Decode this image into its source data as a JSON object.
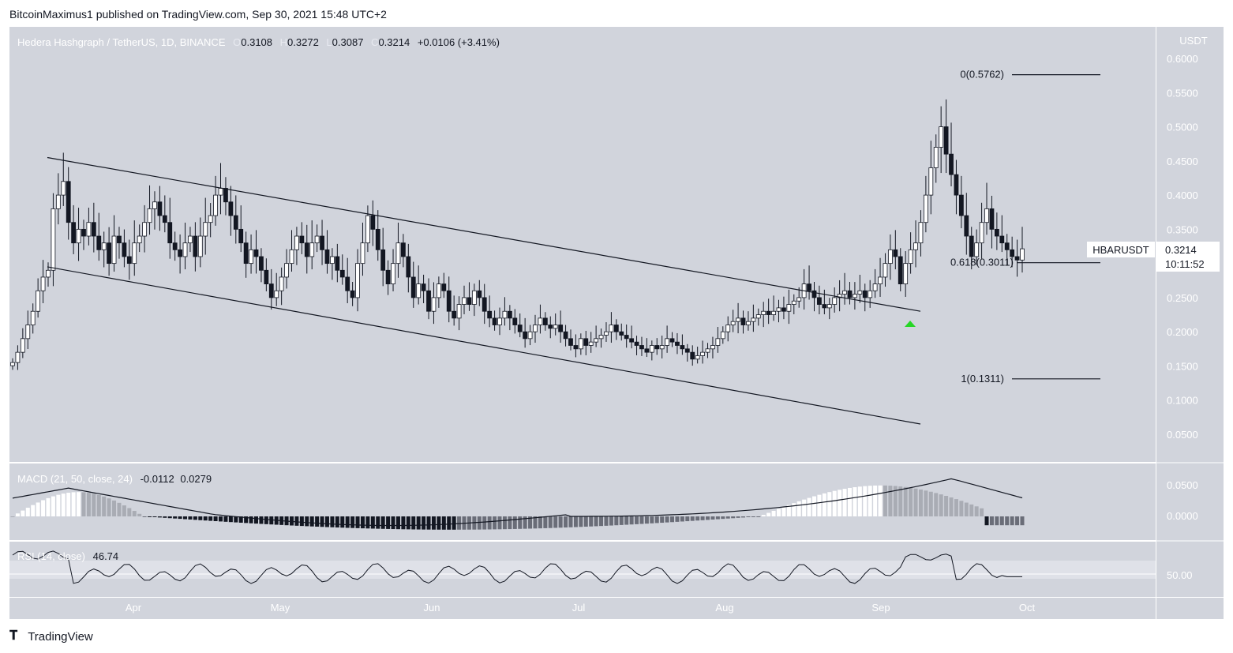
{
  "caption": "BitcoinMaximus1 published on TradingView.com, Sep 30, 2021 15:48 UTC+2",
  "header": {
    "symbol": "Hedera Hashgraph / TetherUS, 1D, BINANCE",
    "o_label": "O",
    "o": "0.3108",
    "h_label": "H",
    "h": "0.3272",
    "l_label": "L",
    "l": "0.3087",
    "c_label": "C",
    "c": "0.3214",
    "change": "+0.0106 (+3.41%)"
  },
  "price_axis": {
    "currency": "USDT",
    "ticks": [
      "0.6000",
      "0.5500",
      "0.5000",
      "0.4500",
      "0.4000",
      "0.3500",
      "0.3000",
      "0.2500",
      "0.2000",
      "0.1500",
      "0.1000",
      "0.0500"
    ],
    "ticket_symbol": "HBARUSDT",
    "ticket_price": "0.3214",
    "ticket_countdown": "10:11:52"
  },
  "fib_labels": {
    "level_0": "0(0.5762)",
    "level_0618": "0.618(0.3011)",
    "level_1": "1(0.1311)"
  },
  "macd": {
    "label": "MACD (21, 50, close, 24)",
    "v1": "-0.0112",
    "v2": "0.0279",
    "ticks": [
      "0.0500",
      "0.0000"
    ]
  },
  "rsi": {
    "label": "RSI (14, close)",
    "value": "46.74",
    "tick": "50.00"
  },
  "time_axis": [
    "Apr",
    "May",
    "Jun",
    "Jul",
    "Aug",
    "Sep",
    "Oct"
  ],
  "brand": "TradingView",
  "colors": {
    "background": "#d1d4dc",
    "bull_body": "#ffffff",
    "bear_body": "#131722",
    "arrow": "#26d626"
  },
  "chart_data": {
    "type": "candlestick",
    "timeframe": "1D",
    "y_range": [
      0.0,
      0.62
    ],
    "ohlc_shown": {
      "open": 0.3108,
      "high": 0.3272,
      "low": 0.3087,
      "close": 0.3214
    },
    "close_series": [
      0.155,
      0.17,
      0.19,
      0.21,
      0.23,
      0.26,
      0.28,
      0.29,
      0.38,
      0.4,
      0.42,
      0.36,
      0.33,
      0.35,
      0.34,
      0.36,
      0.34,
      0.32,
      0.33,
      0.3,
      0.34,
      0.33,
      0.31,
      0.3,
      0.33,
      0.34,
      0.36,
      0.38,
      0.39,
      0.37,
      0.36,
      0.33,
      0.32,
      0.31,
      0.33,
      0.34,
      0.31,
      0.34,
      0.36,
      0.37,
      0.4,
      0.41,
      0.39,
      0.37,
      0.35,
      0.33,
      0.3,
      0.32,
      0.31,
      0.29,
      0.27,
      0.25,
      0.26,
      0.28,
      0.3,
      0.32,
      0.34,
      0.33,
      0.31,
      0.33,
      0.34,
      0.32,
      0.3,
      0.31,
      0.29,
      0.28,
      0.26,
      0.25,
      0.3,
      0.33,
      0.37,
      0.35,
      0.32,
      0.29,
      0.27,
      0.3,
      0.33,
      0.31,
      0.28,
      0.25,
      0.27,
      0.26,
      0.23,
      0.25,
      0.27,
      0.26,
      0.23,
      0.22,
      0.24,
      0.25,
      0.24,
      0.26,
      0.25,
      0.23,
      0.22,
      0.21,
      0.22,
      0.23,
      0.22,
      0.21,
      0.2,
      0.19,
      0.2,
      0.21,
      0.22,
      0.21,
      0.205,
      0.21,
      0.2,
      0.19,
      0.18,
      0.175,
      0.19,
      0.18,
      0.185,
      0.19,
      0.195,
      0.2,
      0.21,
      0.2,
      0.195,
      0.19,
      0.185,
      0.18,
      0.175,
      0.17,
      0.18,
      0.175,
      0.18,
      0.19,
      0.185,
      0.18,
      0.175,
      0.17,
      0.16,
      0.165,
      0.17,
      0.175,
      0.18,
      0.19,
      0.2,
      0.21,
      0.215,
      0.22,
      0.21,
      0.215,
      0.22,
      0.225,
      0.23,
      0.225,
      0.23,
      0.235,
      0.23,
      0.24,
      0.245,
      0.25,
      0.27,
      0.26,
      0.25,
      0.24,
      0.235,
      0.24,
      0.25,
      0.255,
      0.26,
      0.25,
      0.255,
      0.26,
      0.25,
      0.26,
      0.27,
      0.28,
      0.3,
      0.32,
      0.31,
      0.27,
      0.3,
      0.32,
      0.33,
      0.36,
      0.4,
      0.44,
      0.47,
      0.5,
      0.46,
      0.43,
      0.4,
      0.37,
      0.34,
      0.31,
      0.33,
      0.36,
      0.38,
      0.35,
      0.34,
      0.33,
      0.32,
      0.31,
      0.305,
      0.3214
    ],
    "channel": {
      "upper": {
        "start": 0.455,
        "end": 0.23
      },
      "lower": {
        "start": 0.295,
        "end": 0.065
      }
    },
    "fibonacci": [
      {
        "level": 0,
        "value": 0.5762
      },
      {
        "level": 0.618,
        "value": 0.3011
      },
      {
        "level": 1,
        "value": 0.1311
      }
    ],
    "macd": {
      "params": [
        21,
        50,
        24
      ],
      "macd": -0.0112,
      "signal": 0.0279,
      "y_range": [
        -0.02,
        0.07
      ]
    },
    "rsi": {
      "period": 14,
      "value": 46.74,
      "level": 50
    }
  }
}
